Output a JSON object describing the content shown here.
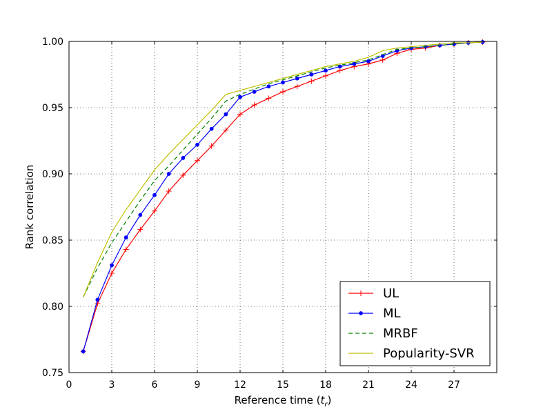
{
  "chart_data": {
    "type": "line",
    "title": "",
    "xlabel": "Reference time",
    "xlabel_symbol": "t",
    "xlabel_subscript": "r",
    "ylabel": "Rank correlation",
    "xlim": [
      0,
      30
    ],
    "ylim": [
      0.75,
      1.0
    ],
    "xticks": [
      0,
      3,
      6,
      9,
      12,
      15,
      18,
      21,
      24,
      27
    ],
    "yticks": [
      0.75,
      0.8,
      0.85,
      0.9,
      0.95,
      1.0
    ],
    "xtick_labels": [
      "0",
      "3",
      "6",
      "9",
      "12",
      "15",
      "18",
      "21",
      "24",
      "27"
    ],
    "ytick_labels": [
      "0.75",
      "0.80",
      "0.85",
      "0.90",
      "0.95",
      "1.00"
    ],
    "grid": true,
    "legend_position": "lower-right",
    "x": [
      1,
      2,
      3,
      4,
      5,
      6,
      7,
      8,
      9,
      10,
      11,
      12,
      13,
      14,
      15,
      16,
      17,
      18,
      19,
      20,
      21,
      22,
      23,
      24,
      25,
      26,
      27,
      28,
      29
    ],
    "series": [
      {
        "name": "UL",
        "color": "#ff0000",
        "marker": "plus",
        "linestyle": "solid",
        "values": [
          0.766,
          0.802,
          0.825,
          0.843,
          0.858,
          0.872,
          0.887,
          0.899,
          0.91,
          0.921,
          0.933,
          0.945,
          0.952,
          0.957,
          0.962,
          0.966,
          0.97,
          0.974,
          0.978,
          0.981,
          0.983,
          0.986,
          0.991,
          0.994,
          0.995,
          0.997,
          0.998,
          0.999,
          0.9995
        ]
      },
      {
        "name": "ML",
        "color": "#0000ff",
        "marker": "dot",
        "linestyle": "solid",
        "values": [
          0.766,
          0.805,
          0.831,
          0.852,
          0.869,
          0.884,
          0.9,
          0.912,
          0.922,
          0.934,
          0.945,
          0.958,
          0.962,
          0.966,
          0.969,
          0.972,
          0.975,
          0.978,
          0.981,
          0.983,
          0.985,
          0.989,
          0.993,
          0.995,
          0.996,
          0.997,
          0.998,
          0.999,
          0.9995
        ]
      },
      {
        "name": "MRBF",
        "color": "#008000",
        "marker": "none",
        "linestyle": "dashed",
        "values": [
          0.807,
          0.829,
          0.848,
          0.864,
          0.88,
          0.895,
          0.906,
          0.918,
          0.93,
          0.942,
          0.955,
          0.96,
          0.964,
          0.968,
          0.971,
          0.974,
          0.977,
          0.98,
          0.982,
          0.984,
          0.986,
          0.99,
          0.994,
          0.995,
          0.996,
          0.997,
          0.998,
          0.999,
          0.9995
        ]
      },
      {
        "name": "Popularity-SVR",
        "color": "#bfbf00",
        "marker": "none",
        "linestyle": "solid",
        "values": [
          0.807,
          0.833,
          0.856,
          0.873,
          0.888,
          0.903,
          0.915,
          0.926,
          0.937,
          0.948,
          0.96,
          0.963,
          0.966,
          0.969,
          0.972,
          0.975,
          0.978,
          0.981,
          0.983,
          0.985,
          0.988,
          0.993,
          0.995,
          0.996,
          0.997,
          0.998,
          0.999,
          0.999,
          0.9995
        ]
      }
    ]
  }
}
